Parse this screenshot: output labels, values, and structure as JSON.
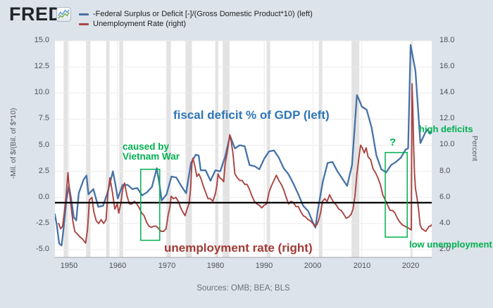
{
  "header": {
    "logo_text": "FRED",
    "logo_mark": "®",
    "legend": [
      {
        "label": "-Federal Surplus or Deficit [-]/(Gross Domestic Product*10) (left)",
        "color": "#4572a7"
      },
      {
        "label": "Unemployment Rate (right)",
        "color": "#a94442"
      }
    ]
  },
  "annotations": {
    "vietnam": {
      "text": "caused by\nVietnam War",
      "color": "#00b050"
    },
    "fiscal_deficit": {
      "text": "fiscal deficit % of GDP (left)",
      "color": "#2e75b6"
    },
    "unemployment_rate": {
      "text": "unemployment rate (right)",
      "color": "#a23b36"
    },
    "question": {
      "text": "?",
      "color": "#00b050"
    },
    "high_deficits": {
      "text": "high deficits",
      "color": "#00b050"
    },
    "low_unemployment": {
      "text": "low unemployment",
      "color": "#00b050"
    }
  },
  "footer": {
    "sources": "Sources: OMB; BEA; BLS"
  },
  "chart_data": {
    "type": "line",
    "x_axis": {
      "ticks": [
        1950,
        1960,
        1970,
        1980,
        1990,
        2000,
        2010,
        2020
      ],
      "range": [
        1947.1,
        2024.3
      ]
    },
    "left_axis": {
      "label": "-Mil. of $/(Bil. of $*10)",
      "ticks": [
        15.0,
        12.5,
        10.0,
        7.5,
        5.0,
        2.5,
        0.0,
        -2.5,
        -5.0
      ],
      "range": [
        -5.7,
        15.0
      ]
    },
    "right_axis": {
      "label": "Percent",
      "ticks": [
        18.0,
        16.0,
        14.0,
        12.0,
        10.0,
        8.0,
        6.0,
        4.0,
        2.0
      ],
      "range": [
        1.4,
        18.0
      ]
    },
    "grid": true,
    "black_line_left_value": -0.5,
    "recessions": [
      [
        1948.9,
        1949.8
      ],
      [
        1953.5,
        1954.4
      ],
      [
        1957.6,
        1958.3
      ],
      [
        1960.3,
        1961.1
      ],
      [
        1969.9,
        1970.9
      ],
      [
        1973.9,
        1975.2
      ],
      [
        1980.0,
        1980.6
      ],
      [
        1981.5,
        1982.9
      ],
      [
        1990.5,
        1991.2
      ],
      [
        2001.2,
        2001.9
      ],
      [
        2007.9,
        2009.5
      ],
      [
        2020.1,
        2020.4
      ]
    ],
    "annotation_boxes": [
      {
        "name": "vietnam-war-box",
        "x_range": [
          1964.7,
          1968.6
        ],
        "left_value_range": [
          -4.1,
          2.7
        ],
        "color": "#00b050"
      },
      {
        "name": "question-box",
        "x_range": [
          2014.8,
          2019.3
        ],
        "left_value_range": [
          -3.8,
          4.3
        ],
        "color": "#00b050"
      }
    ],
    "series": [
      {
        "name": "-Federal Surplus or Deficit [-]/(Gross Domestic Product*10)",
        "axis": "left",
        "color": "#4572a7",
        "points": [
          [
            1947.1,
            -1.6
          ],
          [
            1947.5,
            -2.6
          ],
          [
            1948,
            -4.4
          ],
          [
            1948.5,
            -4.6
          ],
          [
            1949,
            -2.5
          ],
          [
            1949.5,
            -0.2
          ],
          [
            1950,
            1.1
          ],
          [
            1950.5,
            -0.3
          ],
          [
            1951,
            -1.9
          ],
          [
            1951.5,
            -2.2
          ],
          [
            1952,
            0.4
          ],
          [
            1953,
            1.7
          ],
          [
            1953.6,
            2.1
          ],
          [
            1954,
            0.3
          ],
          [
            1955,
            0.8
          ],
          [
            1956,
            -0.9
          ],
          [
            1957,
            -0.8
          ],
          [
            1958,
            0.6
          ],
          [
            1959,
            2.5
          ],
          [
            1959.5,
            1.3
          ],
          [
            1960,
            -0.1
          ],
          [
            1961,
            1.2
          ],
          [
            1962,
            1.2
          ],
          [
            1963,
            0.8
          ],
          [
            1964,
            0.9
          ],
          [
            1965,
            0.2
          ],
          [
            1966,
            0.5
          ],
          [
            1967,
            1.0
          ],
          [
            1968,
            2.8
          ],
          [
            1968.5,
            1.4
          ],
          [
            1969,
            -0.3
          ],
          [
            1970,
            0.3
          ],
          [
            1971,
            2.0
          ],
          [
            1972,
            1.9
          ],
          [
            1973,
            1.1
          ],
          [
            1974,
            0.4
          ],
          [
            1975,
            3.3
          ],
          [
            1976,
            4.1
          ],
          [
            1976.6,
            4.0
          ],
          [
            1977,
            2.6
          ],
          [
            1978,
            2.6
          ],
          [
            1979,
            1.6
          ],
          [
            1980,
            2.6
          ],
          [
            1981,
            2.5
          ],
          [
            1982,
            3.9
          ],
          [
            1983,
            5.9
          ],
          [
            1983.5,
            5.3
          ],
          [
            1984,
            4.7
          ],
          [
            1985,
            5.0
          ],
          [
            1986,
            4.9
          ],
          [
            1987,
            3.1
          ],
          [
            1988,
            3.0
          ],
          [
            1989,
            2.7
          ],
          [
            1990,
            3.7
          ],
          [
            1991,
            4.4
          ],
          [
            1992,
            4.5
          ],
          [
            1993,
            3.8
          ],
          [
            1994,
            2.8
          ],
          [
            1995,
            2.2
          ],
          [
            1996,
            1.3
          ],
          [
            1997,
            0.3
          ],
          [
            1998,
            -0.8
          ],
          [
            1999,
            -1.3
          ],
          [
            2000,
            -2.4
          ],
          [
            2000.5,
            -2.9
          ],
          [
            2001,
            -1.2
          ],
          [
            2002,
            1.5
          ],
          [
            2003,
            3.3
          ],
          [
            2004,
            3.4
          ],
          [
            2005,
            2.5
          ],
          [
            2006,
            1.8
          ],
          [
            2007,
            1.1
          ],
          [
            2008,
            3.1
          ],
          [
            2009,
            9.8
          ],
          [
            2009.5,
            9.3
          ],
          [
            2010,
            8.7
          ],
          [
            2011,
            8.4
          ],
          [
            2012,
            6.7
          ],
          [
            2013,
            4.0
          ],
          [
            2014,
            2.7
          ],
          [
            2015,
            2.4
          ],
          [
            2016,
            3.1
          ],
          [
            2017,
            3.4
          ],
          [
            2018,
            3.8
          ],
          [
            2019,
            4.6
          ],
          [
            2019.5,
            4.7
          ],
          [
            2020,
            14.6
          ],
          [
            2021,
            12.1
          ],
          [
            2022,
            5.2
          ],
          [
            2023,
            6.2
          ],
          [
            2023.5,
            6.5
          ],
          [
            2024,
            6.1
          ],
          [
            2024.3,
            6.4
          ]
        ]
      },
      {
        "name": "Unemployment Rate",
        "axis": "right",
        "color": "#a94442",
        "points": [
          [
            1947.9,
            4.0
          ],
          [
            1948.3,
            3.6
          ],
          [
            1948.7,
            3.8
          ],
          [
            1949.0,
            4.7
          ],
          [
            1949.4,
            6.0
          ],
          [
            1949.8,
            7.9
          ],
          [
            1950.1,
            6.5
          ],
          [
            1950.4,
            5.4
          ],
          [
            1950.8,
            4.2
          ],
          [
            1951.2,
            3.4
          ],
          [
            1951.7,
            3.2
          ],
          [
            1952.2,
            3.0
          ],
          [
            1952.8,
            2.8
          ],
          [
            1953.4,
            2.5
          ],
          [
            1953.8,
            3.5
          ],
          [
            1954.2,
            5.8
          ],
          [
            1954.7,
            6.0
          ],
          [
            1955.1,
            4.9
          ],
          [
            1955.6,
            4.2
          ],
          [
            1956.1,
            4.0
          ],
          [
            1956.6,
            4.3
          ],
          [
            1957.1,
            4.0
          ],
          [
            1957.6,
            4.3
          ],
          [
            1958.0,
            6.4
          ],
          [
            1958.4,
            7.5
          ],
          [
            1958.9,
            6.4
          ],
          [
            1959.4,
            5.1
          ],
          [
            1959.9,
            5.5
          ],
          [
            1960.2,
            4.8
          ],
          [
            1960.6,
            5.5
          ],
          [
            1961.0,
            6.6
          ],
          [
            1961.4,
            7.1
          ],
          [
            1961.9,
            6.1
          ],
          [
            1962.4,
            5.5
          ],
          [
            1962.9,
            5.5
          ],
          [
            1963.4,
            5.7
          ],
          [
            1963.9,
            5.5
          ],
          [
            1964.4,
            5.2
          ],
          [
            1964.9,
            4.8
          ],
          [
            1965.4,
            4.6
          ],
          [
            1965.9,
            4.1
          ],
          [
            1966.4,
            3.8
          ],
          [
            1966.9,
            3.7
          ],
          [
            1967.4,
            3.8
          ],
          [
            1967.9,
            3.8
          ],
          [
            1968.4,
            3.6
          ],
          [
            1968.9,
            3.4
          ],
          [
            1969.4,
            3.4
          ],
          [
            1969.9,
            3.6
          ],
          [
            1970.3,
            4.6
          ],
          [
            1970.7,
            5.3
          ],
          [
            1970.95,
            6.1
          ],
          [
            1971.4,
            5.9
          ],
          [
            1971.9,
            6.0
          ],
          [
            1972.4,
            5.7
          ],
          [
            1972.9,
            5.2
          ],
          [
            1973.3,
            4.9
          ],
          [
            1973.8,
            4.6
          ],
          [
            1974.2,
            5.1
          ],
          [
            1974.6,
            5.5
          ],
          [
            1974.9,
            6.6
          ],
          [
            1975.2,
            8.6
          ],
          [
            1975.4,
            9.0
          ],
          [
            1975.8,
            8.4
          ],
          [
            1976.2,
            7.6
          ],
          [
            1976.6,
            7.8
          ],
          [
            1977.0,
            7.5
          ],
          [
            1977.5,
            6.9
          ],
          [
            1978.0,
            6.4
          ],
          [
            1978.5,
            5.9
          ],
          [
            1979.0,
            5.9
          ],
          [
            1979.5,
            5.7
          ],
          [
            1980.0,
            6.3
          ],
          [
            1980.3,
            6.9
          ],
          [
            1980.55,
            7.8
          ],
          [
            1980.9,
            7.5
          ],
          [
            1981.3,
            7.4
          ],
          [
            1981.7,
            7.2
          ],
          [
            1982.0,
            8.6
          ],
          [
            1982.4,
            9.4
          ],
          [
            1982.7,
            10.1
          ],
          [
            1982.95,
            10.8
          ],
          [
            1983.2,
            10.4
          ],
          [
            1983.6,
            9.4
          ],
          [
            1984.0,
            7.8
          ],
          [
            1984.5,
            7.5
          ],
          [
            1985.0,
            7.3
          ],
          [
            1985.5,
            7.3
          ],
          [
            1986.0,
            7.0
          ],
          [
            1986.5,
            7.0
          ],
          [
            1987.0,
            6.6
          ],
          [
            1987.5,
            6.1
          ],
          [
            1988.0,
            5.7
          ],
          [
            1988.5,
            5.5
          ],
          [
            1989.0,
            5.4
          ],
          [
            1989.5,
            5.2
          ],
          [
            1990.0,
            5.4
          ],
          [
            1990.5,
            5.5
          ],
          [
            1991.0,
            6.4
          ],
          [
            1991.5,
            6.9
          ],
          [
            1992.0,
            7.3
          ],
          [
            1992.5,
            7.7
          ],
          [
            1993.0,
            7.3
          ],
          [
            1993.5,
            7.0
          ],
          [
            1994.0,
            6.6
          ],
          [
            1994.5,
            6.0
          ],
          [
            1995.0,
            5.5
          ],
          [
            1995.5,
            5.7
          ],
          [
            1996.0,
            5.6
          ],
          [
            1996.5,
            5.3
          ],
          [
            1997.0,
            5.3
          ],
          [
            1997.5,
            4.9
          ],
          [
            1998.0,
            4.6
          ],
          [
            1998.5,
            4.5
          ],
          [
            1999.0,
            4.3
          ],
          [
            1999.5,
            4.2
          ],
          [
            2000.0,
            4.0
          ],
          [
            2000.3,
            3.8
          ],
          [
            2000.8,
            3.9
          ],
          [
            2001.2,
            4.3
          ],
          [
            2001.6,
            4.9
          ],
          [
            2001.95,
            5.7
          ],
          [
            2002.4,
            5.9
          ],
          [
            2002.9,
            5.7
          ],
          [
            2003.4,
            6.2
          ],
          [
            2003.8,
            5.9
          ],
          [
            2004.3,
            5.6
          ],
          [
            2004.8,
            5.4
          ],
          [
            2005.3,
            5.1
          ],
          [
            2005.8,
            5.0
          ],
          [
            2006.3,
            4.7
          ],
          [
            2006.8,
            4.4
          ],
          [
            2007.3,
            4.5
          ],
          [
            2007.8,
            4.7
          ],
          [
            2008.2,
            5.1
          ],
          [
            2008.6,
            6.1
          ],
          [
            2009.0,
            7.8
          ],
          [
            2009.4,
            9.0
          ],
          [
            2009.75,
            10.0
          ],
          [
            2010.1,
            9.8
          ],
          [
            2010.5,
            9.4
          ],
          [
            2010.9,
            9.8
          ],
          [
            2011.3,
            9.1
          ],
          [
            2011.8,
            8.9
          ],
          [
            2012.3,
            8.2
          ],
          [
            2012.8,
            7.9
          ],
          [
            2013.3,
            7.5
          ],
          [
            2013.8,
            7.0
          ],
          [
            2014.3,
            6.2
          ],
          [
            2014.8,
            5.8
          ],
          [
            2015.3,
            5.4
          ],
          [
            2015.8,
            5.0
          ],
          [
            2016.3,
            5.0
          ],
          [
            2016.8,
            4.8
          ],
          [
            2017.3,
            4.4
          ],
          [
            2017.8,
            4.1
          ],
          [
            2018.3,
            3.9
          ],
          [
            2018.8,
            3.8
          ],
          [
            2019.3,
            3.7
          ],
          [
            2019.8,
            3.6
          ],
          [
            2020.15,
            3.5
          ],
          [
            2020.29,
            14.7
          ],
          [
            2020.45,
            13.0
          ],
          [
            2020.6,
            10.2
          ],
          [
            2020.8,
            7.9
          ],
          [
            2021.0,
            6.7
          ],
          [
            2021.3,
            6.0
          ],
          [
            2021.6,
            5.2
          ],
          [
            2021.95,
            3.9
          ],
          [
            2022.3,
            3.6
          ],
          [
            2022.7,
            3.5
          ],
          [
            2023.1,
            3.4
          ],
          [
            2023.45,
            3.6
          ],
          [
            2023.8,
            3.8
          ],
          [
            2024.1,
            3.8
          ],
          [
            2024.3,
            3.9
          ]
        ]
      }
    ]
  }
}
